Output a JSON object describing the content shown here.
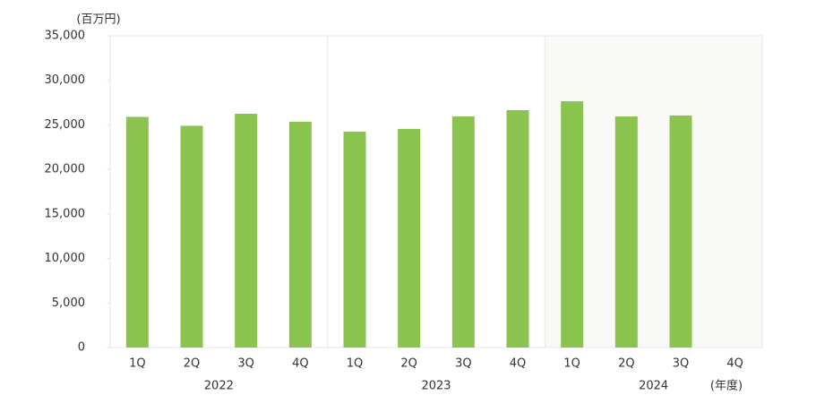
{
  "chart_data": {
    "type": "bar",
    "y_unit": "(百万円)",
    "x_unit": "(年度)",
    "categories": [
      "1Q",
      "2Q",
      "3Q",
      "4Q",
      "1Q",
      "2Q",
      "3Q",
      "4Q",
      "1Q",
      "2Q",
      "3Q",
      "4Q"
    ],
    "groups": [
      "2022",
      "2023",
      "2024"
    ],
    "values": [
      25900,
      24900,
      26250,
      25350,
      24250,
      24550,
      25950,
      26650,
      27650,
      25950,
      26050,
      null
    ],
    "color": "#8bc34f",
    "ylim": [
      0,
      35000
    ],
    "yticks": [
      0,
      {
        "value": 5000,
        "label": "5,000"
      },
      {
        "value": 10000,
        "label": "10,000"
      },
      {
        "value": 15000,
        "label": "15,000"
      },
      {
        "value": 20000,
        "label": "20,000"
      },
      {
        "value": 25000,
        "label": "25,000"
      },
      {
        "value": 30000,
        "label": "30,000"
      },
      {
        "value": 35000,
        "label": "35,000"
      }
    ],
    "grid": false
  }
}
